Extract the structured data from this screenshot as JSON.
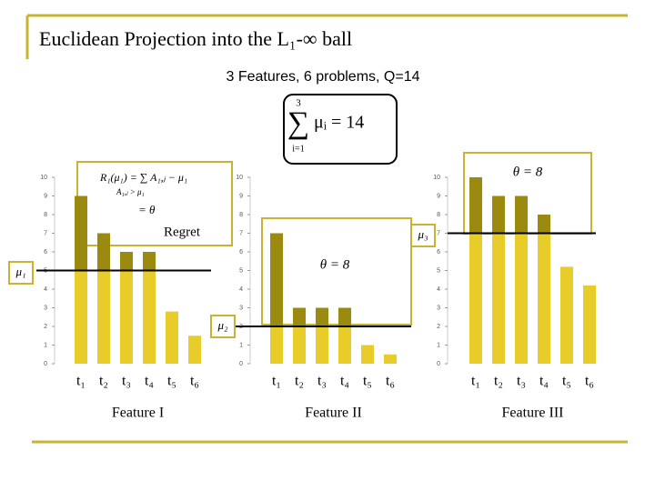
{
  "title": "Euclidean Projection into the L₁-∞ ball",
  "subtitle": "3 Features, 6 problems, Q=14",
  "formula": {
    "top": "3",
    "sigma": "∑",
    "bottom": "i=1",
    "body": "μᵢ = 14"
  },
  "chart_data": [
    {
      "type": "bar",
      "title": "Feature I",
      "categories": [
        "t₁",
        "t₂",
        "t₃",
        "t₄",
        "t₅",
        "t₆"
      ],
      "values": [
        9,
        7,
        6,
        6,
        2.8,
        1.5
      ],
      "color": "#e8cc2a",
      "excess_color": "#9a8a10",
      "ylim": [
        0,
        10
      ],
      "yticks": [
        0,
        1,
        2,
        3,
        4,
        5,
        6,
        7,
        8,
        9,
        10
      ],
      "threshold": 5,
      "threshold_label": "μ₁",
      "annotations": [
        "R₁(μ₁) = ∑ A₁,ⱼ − μ₁",
        "A₁,ⱼ > μ₁",
        "= θ",
        "Regret"
      ]
    },
    {
      "type": "bar",
      "title": "Feature II",
      "categories": [
        "t₁",
        "t₂",
        "t₃",
        "t₄",
        "t₅",
        "t₆"
      ],
      "values": [
        7,
        3,
        3,
        3,
        1,
        0.5
      ],
      "color": "#e8cc2a",
      "excess_color": "#9a8a10",
      "ylim": [
        0,
        10
      ],
      "yticks": [
        0,
        1,
        2,
        3,
        4,
        5,
        6,
        7,
        8,
        9,
        10
      ],
      "threshold": 2,
      "threshold_label": "μ₂",
      "annotations": [
        "θ = 8"
      ]
    },
    {
      "type": "bar",
      "title": "Feature III",
      "categories": [
        "t₁",
        "t₂",
        "t₃",
        "t₄",
        "t₅",
        "t₆"
      ],
      "values": [
        10,
        9,
        9,
        8,
        5.2,
        4.2
      ],
      "color": "#e8cc2a",
      "excess_color": "#9a8a10",
      "ylim": [
        0,
        10
      ],
      "yticks": [
        0,
        1,
        2,
        3,
        4,
        5,
        6,
        7,
        8,
        9,
        10
      ],
      "threshold": 7,
      "threshold_label": "μ₃",
      "annotations": [
        "θ = 8"
      ]
    }
  ]
}
